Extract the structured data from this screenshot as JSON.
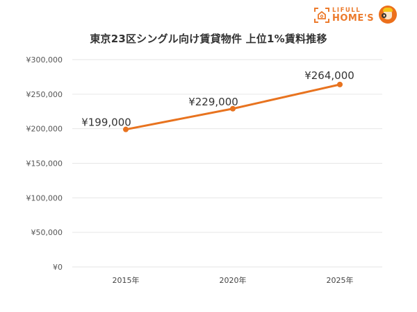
{
  "logo": {
    "line1": "LIFULL",
    "line2": "HOME'S",
    "brand_color": "#ec7a2b"
  },
  "title": "東京23区シングル向け賃貸物件 上位1%賃料推移",
  "chart_data": {
    "type": "line",
    "title": "東京23区シングル向け賃貸物件 上位1%賃料推移",
    "xlabel": "",
    "ylabel": "",
    "categories": [
      "2015年",
      "2020年",
      "2025年"
    ],
    "series": [
      {
        "name": "上位1%賃料",
        "values": [
          199000,
          229000,
          264000
        ],
        "labels": [
          "¥199,000",
          "¥229,000",
          "¥264,000"
        ],
        "color": "#e8731f"
      }
    ],
    "ylim": [
      0,
      300000
    ],
    "yticks": [
      0,
      50000,
      100000,
      150000,
      200000,
      250000,
      300000
    ],
    "ytick_labels": [
      "¥0",
      "¥50,000",
      "¥100,000",
      "¥150,000",
      "¥200,000",
      "¥250,000",
      "¥300,000"
    ],
    "grid": true,
    "legend": "none"
  }
}
